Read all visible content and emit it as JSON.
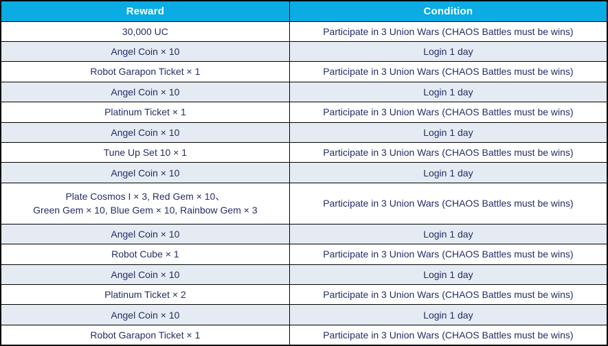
{
  "colors": {
    "header_bg": "#0aace3",
    "header_text": "#ffffff",
    "row_bg": "#ffffff",
    "row_alt_bg": "#e4ebf2",
    "body_text": "#262c65",
    "border": "#000000"
  },
  "table": {
    "columns": [
      "Reward",
      "Condition"
    ],
    "rows": [
      {
        "reward": "30,000 UC",
        "condition": "Participate in 3 Union Wars (CHAOS Battles must be wins)"
      },
      {
        "reward": "Angel Coin × 10",
        "condition": "Login 1 day"
      },
      {
        "reward": "Robot Garapon Ticket × 1",
        "condition": "Participate in 3 Union Wars (CHAOS Battles must be wins)"
      },
      {
        "reward": "Angel Coin × 10",
        "condition": "Login 1 day"
      },
      {
        "reward": "Platinum Ticket × 1",
        "condition": "Participate in 3 Union Wars (CHAOS Battles must be wins)"
      },
      {
        "reward": "Angel Coin × 10",
        "condition": "Login 1 day"
      },
      {
        "reward": "Tune Up Set 10 × 1",
        "condition": "Participate in 3 Union Wars (CHAOS Battles must be wins)"
      },
      {
        "reward": "Angel Coin × 10",
        "condition": "Login 1 day"
      },
      {
        "reward": "Plate Cosmos I × 3, Red Gem × 10、\nGreen Gem × 10, Blue Gem × 10, Rainbow Gem × 3",
        "condition": "Participate in 3 Union Wars (CHAOS Battles must be wins)",
        "double_line": true
      },
      {
        "reward": "Angel Coin × 10",
        "condition": "Login 1 day"
      },
      {
        "reward": "Robot Cube × 1",
        "condition": "Participate in 3 Union Wars (CHAOS Battles must be wins)"
      },
      {
        "reward": "Angel Coin × 10",
        "condition": "Login 1 day"
      },
      {
        "reward": "Platinum Ticket × 2",
        "condition": "Participate in 3 Union Wars (CHAOS Battles must be wins)"
      },
      {
        "reward": "Angel Coin × 10",
        "condition": "Login 1 day"
      },
      {
        "reward": "Robot Garapon Ticket × 1",
        "condition": "Participate in 3 Union Wars (CHAOS Battles must be wins)"
      }
    ]
  }
}
